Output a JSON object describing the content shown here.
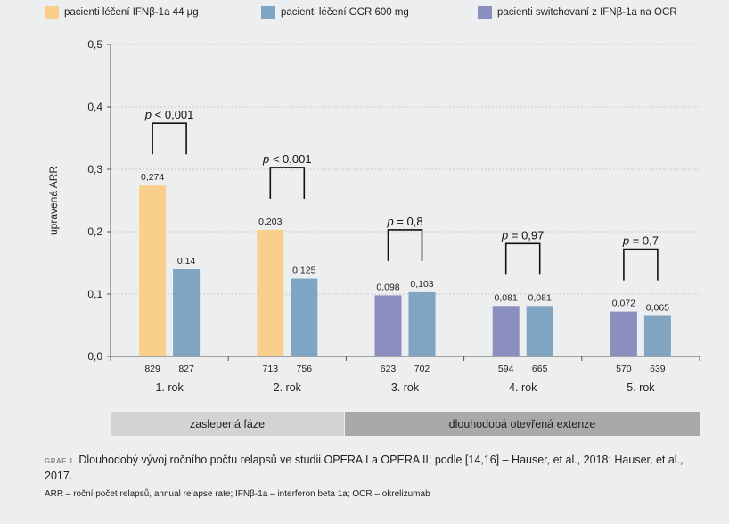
{
  "legend": [
    {
      "label": "pacienti léčení IFNβ-1a 44 µg",
      "color": "#f9cf8b"
    },
    {
      "label": "pacienti léčení OCR 600 mg",
      "color": "#80a5c2"
    },
    {
      "label": "pacienti switchovaní z IFNβ-1a na OCR",
      "color": "#8b8fc0"
    }
  ],
  "chart_data": {
    "type": "bar",
    "ylabel": "upravená ARR",
    "ylim": [
      0,
      0.5
    ],
    "yticks": [
      "0,0",
      "0,1",
      "0,2",
      "0,3",
      "0,4",
      "0,5"
    ],
    "grid": true,
    "categories": [
      "1. rok",
      "2. rok",
      "3. rok",
      "4. rok",
      "5. rok"
    ],
    "groups": [
      {
        "category": "1. rok",
        "bars": [
          {
            "value": 0.274,
            "label": "0,274",
            "n": "829",
            "color": "#f9cf8b"
          },
          {
            "value": 0.14,
            "label": "0,14",
            "n": "827",
            "color": "#80a5c2"
          }
        ],
        "p_prefix": "p",
        "p_text": " < 0,001"
      },
      {
        "category": "2. rok",
        "bars": [
          {
            "value": 0.203,
            "label": "0,203",
            "n": "713",
            "color": "#f9cf8b"
          },
          {
            "value": 0.125,
            "label": "0,125",
            "n": "756",
            "color": "#80a5c2"
          }
        ],
        "p_prefix": "p",
        "p_text": " < 0,001"
      },
      {
        "category": "3. rok",
        "bars": [
          {
            "value": 0.098,
            "label": "0,098",
            "n": "623",
            "color": "#8b8fc0"
          },
          {
            "value": 0.103,
            "label": "0,103",
            "n": "702",
            "color": "#80a5c2"
          }
        ],
        "p_prefix": "p",
        "p_text": " = 0,8"
      },
      {
        "category": "4. rok",
        "bars": [
          {
            "value": 0.081,
            "label": "0,081",
            "n": "594",
            "color": "#8b8fc0"
          },
          {
            "value": 0.081,
            "label": "0,081",
            "n": "665",
            "color": "#80a5c2"
          }
        ],
        "p_prefix": "p",
        "p_text": " = 0,97"
      },
      {
        "category": "5. rok",
        "bars": [
          {
            "value": 0.072,
            "label": "0,072",
            "n": "570",
            "color": "#8b8fc0"
          },
          {
            "value": 0.065,
            "label": "0,065",
            "n": "639",
            "color": "#80a5c2"
          }
        ],
        "p_prefix": "p",
        "p_text": " = 0,7"
      }
    ]
  },
  "phases": [
    {
      "label": "zaslepená fáze",
      "color": "#d2d3d5"
    },
    {
      "label": "dlouhodobá otevřená extenze",
      "color": "#a8a9ab"
    }
  ],
  "caption": {
    "label": "GRAF 1",
    "text": "Dlouhodobý vývoj ročního počtu relapsů ve studii OPERA I a OPERA II; podle [14,16] – Hauser, et al., 2018; Hauser, et al., 2017."
  },
  "footnote": "ARR – roční počet relapsů, annual relapse rate; IFNβ-1a – interferon beta 1a; OCR – okrelizumab"
}
